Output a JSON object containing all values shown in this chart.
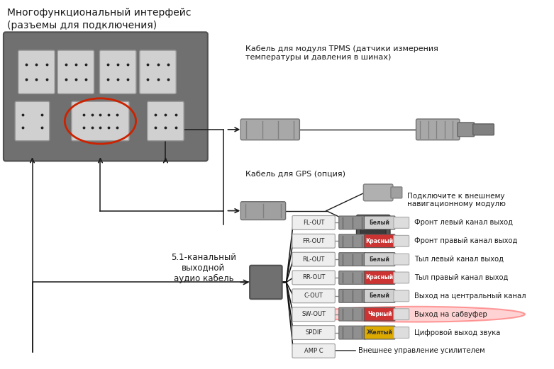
{
  "title_line1": "Многофункциональный интерфейс",
  "title_line2": "(разъемы для подключения)",
  "bg_color": "#ffffff",
  "cables": [
    {
      "label": "FL-OUT",
      "plug_color": "#909090",
      "cap_color": "#d0d0d0",
      "cap_label": "Белый",
      "cap_text_color": "#333333",
      "desc": "Фронт левый канал выход",
      "highlight": false,
      "ridges": "gray"
    },
    {
      "label": "FR-OUT",
      "plug_color": "#cc3333",
      "cap_color": "#cc3333",
      "cap_label": "Красный",
      "cap_text_color": "#ffffff",
      "desc": "Фронт правый канал выход",
      "highlight": false,
      "ridges": "red"
    },
    {
      "label": "RL-OUT",
      "plug_color": "#909090",
      "cap_color": "#d0d0d0",
      "cap_label": "Белый",
      "cap_text_color": "#333333",
      "desc": "Тыл левый канал выход",
      "highlight": false,
      "ridges": "gray"
    },
    {
      "label": "RR-OUT",
      "plug_color": "#cc3333",
      "cap_color": "#cc3333",
      "cap_label": "Красный",
      "cap_text_color": "#ffffff",
      "desc": "Тыл правый канал выход",
      "highlight": false,
      "ridges": "red"
    },
    {
      "label": "C-OUT",
      "plug_color": "#909090",
      "cap_color": "#d0d0d0",
      "cap_label": "Белый",
      "cap_text_color": "#333333",
      "desc": "Выход на центральный канал",
      "highlight": false,
      "ridges": "gray"
    },
    {
      "label": "SW-OUT",
      "plug_color": "#cc3333",
      "cap_color": "#cc3333",
      "cap_label": "Черный",
      "cap_text_color": "#ffffff",
      "desc": "Выход на сабвуфер",
      "highlight": true,
      "ridges": "red"
    },
    {
      "label": "SPDIF",
      "plug_color": "#ddaa00",
      "cap_color": "#ddaa00",
      "cap_label": "Желтый",
      "cap_text_color": "#333333",
      "desc": "Цифровой выход звука",
      "highlight": false,
      "ridges": "yellow"
    },
    {
      "label": "AMP C",
      "plug_color": null,
      "cap_color": null,
      "cap_label": null,
      "cap_text_color": null,
      "desc": "Внешнее управление усилителем",
      "highlight": false,
      "ridges": null
    }
  ],
  "tpms_label": "Кабель для модуля TPMS (датчики измерения\nтемпературы и давления в шинах)",
  "gps_label": "Кабель для GPS (опция)",
  "gps_note": "Подключите к внешнему\nнавигационному модулю",
  "audio_label": "5.1-канальный\nвыходной\nаудио кабель",
  "text_color": "#1a1a1a",
  "font_family": "DejaVu Sans"
}
